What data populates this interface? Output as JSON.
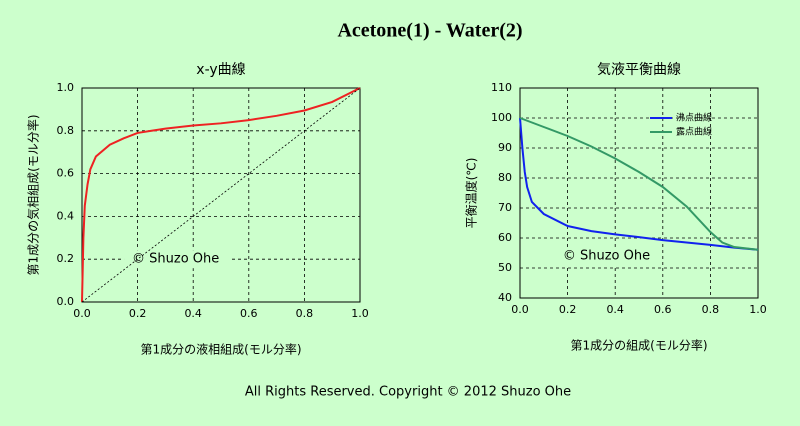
{
  "title": "Acetone(1) - Water(2)",
  "footer": "All Rights Reserved. Copyright © 2012 Shuzo Ohe",
  "chart_data": [
    {
      "type": "line",
      "title": "x-y曲線",
      "xlabel": "第1成分の液相組成(モル分率)",
      "ylabel": "第1成分の気相組成(モル分率)",
      "annotation": "© Shuzo Ohe",
      "xlim": [
        0,
        1
      ],
      "ylim": [
        0,
        1
      ],
      "xticks": [
        {
          "value": 0,
          "label": "0.0"
        },
        {
          "value": 0.2,
          "label": "0.2"
        },
        {
          "value": 0.4,
          "label": "0.4"
        },
        {
          "value": 0.6,
          "label": "0.6"
        },
        {
          "value": 0.8,
          "label": "0.8"
        },
        {
          "value": 1,
          "label": "1.0"
        }
      ],
      "yticks": [
        {
          "value": 0,
          "label": "0.0"
        },
        {
          "value": 0.2,
          "label": "0.2"
        },
        {
          "value": 0.4,
          "label": "0.4"
        },
        {
          "value": 0.6,
          "label": "0.6"
        },
        {
          "value": 0.8,
          "label": "0.8"
        },
        {
          "value": 1,
          "label": "1.0"
        }
      ],
      "grid": true,
      "series": [
        {
          "color": "#ee2222",
          "x": [
            0,
            0.005,
            0.01,
            0.02,
            0.03,
            0.05,
            0.1,
            0.15,
            0.2,
            0.25,
            0.3,
            0.4,
            0.5,
            0.6,
            0.7,
            0.8,
            0.9,
            1.0
          ],
          "values": [
            0,
            0.3,
            0.45,
            0.55,
            0.62,
            0.68,
            0.735,
            0.765,
            0.79,
            0.8,
            0.81,
            0.825,
            0.835,
            0.85,
            0.87,
            0.895,
            0.935,
            1.0
          ]
        },
        {
          "color": "#000000",
          "dashed": true,
          "x": [
            0,
            1
          ],
          "values": [
            0,
            1
          ]
        }
      ]
    },
    {
      "type": "line",
      "title": "気液平衡曲線",
      "xlabel": "第1成分の組成(モル分率)",
      "ylabel": "平衡温度(℃)",
      "annotation": "© Shuzo Ohe",
      "xlim": [
        0,
        1
      ],
      "ylim": [
        40,
        110
      ],
      "xticks": [
        {
          "value": 0,
          "label": "0.0"
        },
        {
          "value": 0.2,
          "label": "0.2"
        },
        {
          "value": 0.4,
          "label": "0.4"
        },
        {
          "value": 0.6,
          "label": "0.6"
        },
        {
          "value": 0.8,
          "label": "0.8"
        },
        {
          "value": 1,
          "label": "1.0"
        }
      ],
      "yticks": [
        40,
        50,
        60,
        70,
        80,
        90,
        100,
        110
      ],
      "grid": true,
      "legend": "upper right",
      "series": [
        {
          "name": "沸点曲線",
          "color": "#1122ee",
          "x": [
            0,
            0.01,
            0.02,
            0.03,
            0.05,
            0.1,
            0.2,
            0.3,
            0.4,
            0.5,
            0.6,
            0.7,
            0.8,
            0.9,
            1.0
          ],
          "values": [
            100,
            90,
            82,
            77,
            72,
            68,
            64,
            62.3,
            61.2,
            60.3,
            59.3,
            58.5,
            57.7,
            56.8,
            56.1
          ]
        },
        {
          "name": "露点曲線",
          "color": "#339966",
          "x": [
            0,
            0.1,
            0.2,
            0.3,
            0.4,
            0.5,
            0.6,
            0.7,
            0.8,
            0.85,
            0.9,
            1.0
          ],
          "values": [
            100,
            97,
            94,
            90.5,
            86.5,
            82,
            77,
            70.5,
            62,
            58.5,
            57,
            56.1
          ]
        }
      ]
    }
  ]
}
